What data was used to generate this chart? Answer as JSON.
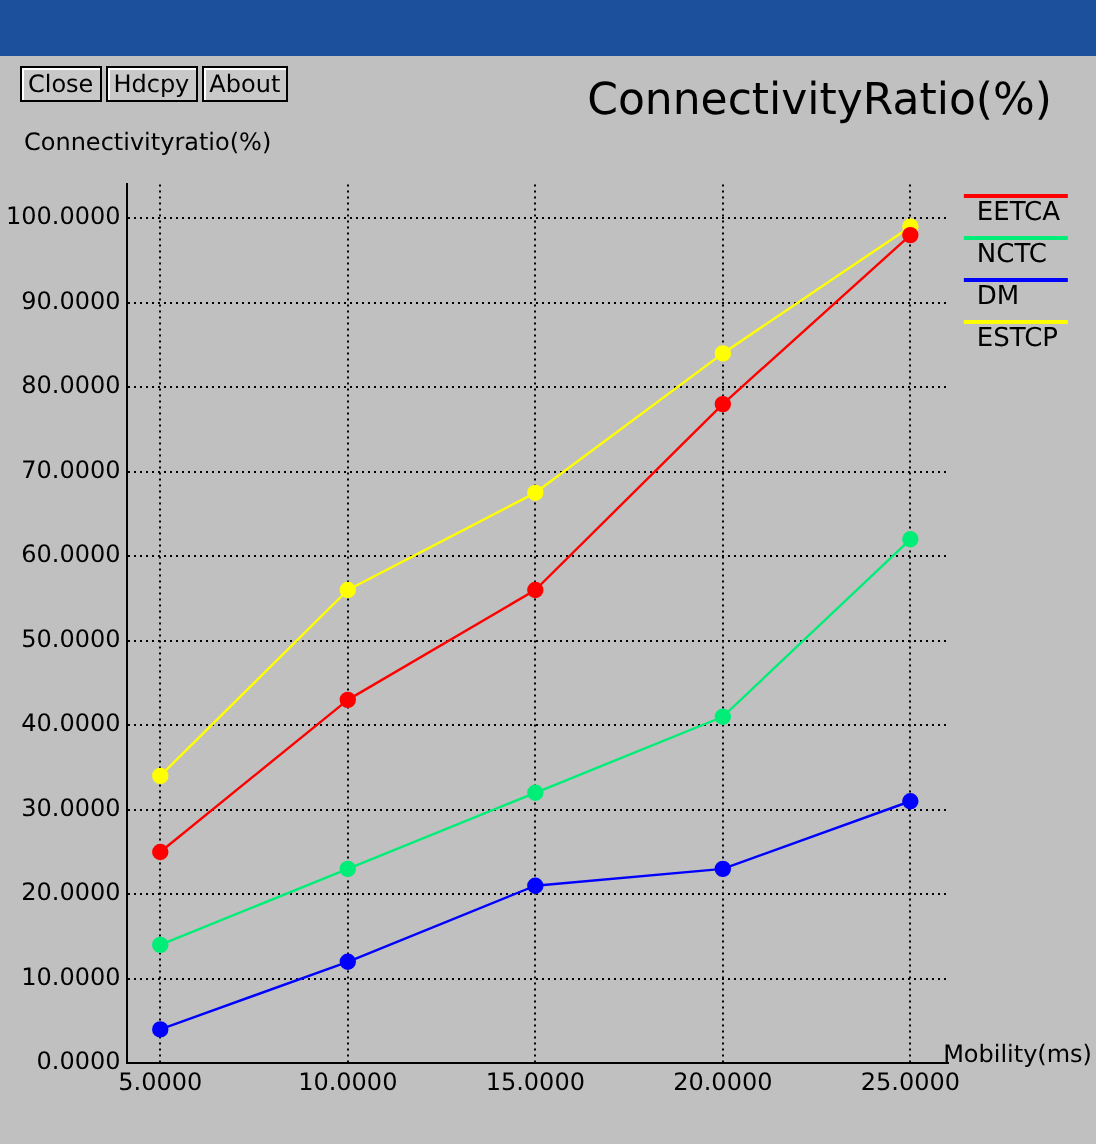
{
  "chart_data": {
    "type": "line",
    "title": "ConnectivityRatio(%)",
    "xlabel": "Mobility(ms)",
    "ylabel": "Connectivityratio(%)",
    "annotations": [
      "Close",
      "Hdcpy",
      "About"
    ],
    "x": [
      5,
      10,
      15,
      20,
      25
    ],
    "series": [
      {
        "name": "EETCA",
        "color": "#ff0000",
        "values": [
          25,
          43,
          56,
          78,
          98
        ]
      },
      {
        "name": "NCTC",
        "color": "#00ee77",
        "values": [
          14,
          23,
          32,
          41,
          62
        ]
      },
      {
        "name": "DM",
        "color": "#0000ff",
        "values": [
          4,
          12,
          21,
          23,
          31
        ]
      },
      {
        "name": "ESTCP",
        "color": "#ffff00",
        "values": [
          34,
          56,
          67.5,
          84,
          99
        ]
      }
    ],
    "xlim": [
      4.1,
      26
    ],
    "ylim": [
      0,
      104
    ],
    "xticks": [
      {
        "value": 5,
        "label": "5.0000"
      },
      {
        "value": 10,
        "label": "10.0000"
      },
      {
        "value": 15,
        "label": "15.0000"
      },
      {
        "value": 20,
        "label": "20.0000"
      },
      {
        "value": 25,
        "label": "25.0000"
      }
    ],
    "yticks": [
      {
        "value": 0,
        "label": "0.0000"
      },
      {
        "value": 10,
        "label": "10.0000"
      },
      {
        "value": 20,
        "label": "20.0000"
      },
      {
        "value": 30,
        "label": "30.0000"
      },
      {
        "value": 40,
        "label": "40.0000"
      },
      {
        "value": 50,
        "label": "50.0000"
      },
      {
        "value": 60,
        "label": "60.0000"
      },
      {
        "value": 70,
        "label": "70.0000"
      },
      {
        "value": 80,
        "label": "80.0000"
      },
      {
        "value": 90,
        "label": "90.0000"
      },
      {
        "value": 100,
        "label": "100.0000"
      }
    ],
    "grid": true,
    "legend": "top right",
    "marker": "circle",
    "line_style": "solid"
  }
}
